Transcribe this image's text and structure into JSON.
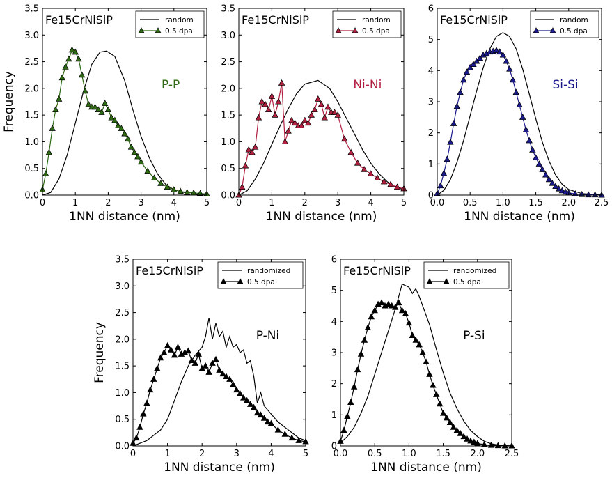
{
  "figure": {
    "ylabel": "Frequency",
    "xlabel": "1NN distance (nm)"
  },
  "chart_data": [
    {
      "id": "pp",
      "type": "line",
      "title": "Fe15CrNiSiP",
      "annotation": "P-P",
      "annotation_color": "#2d6a12",
      "xlabel": "1NN distance (nm)",
      "ylabel": "Frequency",
      "xlim": [
        0,
        5
      ],
      "ylim": [
        0,
        3.5
      ],
      "xticks": [
        "0",
        "1",
        "2",
        "3",
        "4",
        "5"
      ],
      "yticks": [
        "0.0",
        "0.5",
        "1.0",
        "1.5",
        "2.0",
        "2.5",
        "3.0",
        "3.5"
      ],
      "legend": "top-right",
      "series": [
        {
          "name": "random",
          "color": "#000000",
          "marker": "none",
          "x": [
            0,
            0.25,
            0.5,
            0.75,
            1,
            1.25,
            1.5,
            1.75,
            1.95,
            2.2,
            2.5,
            2.75,
            3,
            3.25,
            3.5,
            3.75,
            4,
            4.5,
            5
          ],
          "y": [
            0,
            0.05,
            0.3,
            0.75,
            1.35,
            1.95,
            2.45,
            2.68,
            2.7,
            2.6,
            2.15,
            1.6,
            1.1,
            0.7,
            0.4,
            0.2,
            0.1,
            0.02,
            0
          ]
        },
        {
          "name": "0.5 dpa",
          "color": "#2d6a12",
          "marker": "triangle",
          "x": [
            0,
            0.1,
            0.2,
            0.3,
            0.4,
            0.5,
            0.6,
            0.7,
            0.8,
            0.9,
            1.0,
            1.1,
            1.2,
            1.3,
            1.4,
            1.5,
            1.6,
            1.7,
            1.8,
            1.9,
            2.0,
            2.1,
            2.2,
            2.3,
            2.4,
            2.5,
            2.6,
            2.7,
            2.8,
            2.9,
            3.0,
            3.2,
            3.4,
            3.6,
            3.8,
            4.0,
            4.2,
            4.4,
            4.6,
            4.8,
            5.0
          ],
          "y": [
            0.1,
            0.4,
            0.8,
            1.25,
            1.6,
            1.8,
            2.2,
            2.4,
            2.55,
            2.72,
            2.68,
            2.55,
            2.25,
            1.95,
            1.7,
            1.65,
            1.65,
            1.6,
            1.55,
            1.72,
            1.6,
            1.45,
            1.4,
            1.3,
            1.25,
            1.15,
            1.05,
            0.9,
            0.8,
            0.72,
            0.62,
            0.45,
            0.32,
            0.22,
            0.15,
            0.1,
            0.07,
            0.05,
            0.04,
            0.03,
            0.02
          ]
        }
      ]
    },
    {
      "id": "nini",
      "type": "line",
      "title": "Fe15CrNiSiP",
      "annotation": "Ni-Ni",
      "annotation_color": "#b22040",
      "xlabel": "1NN distance (nm)",
      "ylabel": "",
      "xlim": [
        0,
        5
      ],
      "ylim": [
        0,
        3.5
      ],
      "xticks": [
        "0",
        "1",
        "2",
        "3",
        "4",
        "5"
      ],
      "yticks": [
        "0.0",
        "0.5",
        "1.0",
        "1.5",
        "2.0",
        "2.5",
        "3.0",
        "3.5"
      ],
      "legend": "top-right",
      "series": [
        {
          "name": "random",
          "color": "#000000",
          "marker": "none",
          "x": [
            0,
            0.25,
            0.5,
            0.75,
            1,
            1.25,
            1.5,
            1.75,
            2,
            2.4,
            2.75,
            3,
            3.25,
            3.5,
            3.75,
            4,
            4.25,
            4.5,
            4.75,
            5
          ],
          "y": [
            0,
            0.08,
            0.3,
            0.6,
            0.95,
            1.3,
            1.62,
            1.9,
            2.08,
            2.15,
            2.0,
            1.75,
            1.45,
            1.15,
            0.85,
            0.6,
            0.4,
            0.25,
            0.15,
            0.1
          ]
        },
        {
          "name": "0.5 dpa",
          "color": "#b22040",
          "marker": "triangle",
          "x": [
            0,
            0.1,
            0.2,
            0.3,
            0.4,
            0.5,
            0.6,
            0.7,
            0.8,
            0.9,
            1.0,
            1.1,
            1.2,
            1.3,
            1.4,
            1.5,
            1.6,
            1.7,
            1.8,
            1.9,
            2.0,
            2.1,
            2.2,
            2.3,
            2.4,
            2.5,
            2.6,
            2.7,
            2.8,
            2.9,
            3.0,
            3.2,
            3.4,
            3.6,
            3.8,
            4.0,
            4.2,
            4.4,
            4.6,
            4.8,
            5.0
          ],
          "y": [
            0.0,
            0.15,
            0.55,
            0.85,
            0.8,
            0.9,
            1.45,
            1.75,
            1.7,
            1.6,
            1.85,
            1.5,
            1.75,
            2.1,
            1.0,
            1.2,
            1.4,
            1.35,
            1.3,
            1.3,
            1.4,
            1.35,
            1.5,
            1.6,
            1.8,
            1.7,
            1.45,
            1.65,
            1.55,
            1.55,
            1.5,
            1.05,
            0.8,
            0.6,
            0.48,
            0.4,
            0.32,
            0.25,
            0.2,
            0.15,
            0.12
          ]
        }
      ]
    },
    {
      "id": "sisi",
      "type": "line",
      "title": "Fe15CrNiSiP",
      "annotation": "Si-Si",
      "annotation_color": "#1a1a8c",
      "xlabel": "1NN distance (nm)",
      "ylabel": "",
      "xlim": [
        0,
        2.5
      ],
      "ylim": [
        0,
        6
      ],
      "xticks": [
        "0.0",
        "0.5",
        "1.0",
        "1.5",
        "2.0",
        "2.5"
      ],
      "yticks": [
        "0",
        "1",
        "2",
        "3",
        "4",
        "5",
        "6"
      ],
      "legend": "top-right",
      "series": [
        {
          "name": "random",
          "color": "#000000",
          "marker": "none",
          "x": [
            0,
            0.1,
            0.2,
            0.3,
            0.4,
            0.5,
            0.6,
            0.7,
            0.8,
            0.9,
            1.0,
            1.1,
            1.2,
            1.3,
            1.4,
            1.5,
            1.6,
            1.7,
            1.8,
            1.9,
            2.0,
            2.2,
            2.5
          ],
          "y": [
            0,
            0.15,
            0.5,
            1.05,
            1.75,
            2.55,
            3.35,
            4.1,
            4.7,
            5.1,
            5.22,
            5.1,
            4.7,
            4.05,
            3.25,
            2.45,
            1.7,
            1.1,
            0.65,
            0.35,
            0.18,
            0.05,
            0
          ]
        },
        {
          "name": "0.5 dpa",
          "color": "#1a1a8c",
          "marker": "triangle",
          "x": [
            0,
            0.05,
            0.1,
            0.15,
            0.2,
            0.25,
            0.3,
            0.35,
            0.4,
            0.45,
            0.5,
            0.55,
            0.6,
            0.65,
            0.7,
            0.75,
            0.8,
            0.85,
            0.9,
            0.95,
            1.0,
            1.05,
            1.1,
            1.15,
            1.2,
            1.25,
            1.3,
            1.35,
            1.4,
            1.45,
            1.5,
            1.55,
            1.6,
            1.65,
            1.7,
            1.75,
            1.8,
            1.85,
            1.9,
            1.95,
            2.0,
            2.1,
            2.2,
            2.3,
            2.4,
            2.5
          ],
          "y": [
            0.05,
            0.3,
            0.7,
            1.15,
            1.7,
            2.3,
            2.85,
            3.3,
            3.7,
            3.95,
            4.1,
            4.2,
            4.3,
            4.4,
            4.5,
            4.55,
            4.6,
            4.62,
            4.65,
            4.6,
            4.5,
            4.3,
            4.05,
            3.7,
            3.3,
            2.9,
            2.5,
            2.1,
            1.75,
            1.45,
            1.2,
            1.0,
            0.82,
            0.65,
            0.5,
            0.38,
            0.28,
            0.2,
            0.14,
            0.1,
            0.07,
            0.04,
            0.02,
            0.01,
            0.01,
            0.0
          ]
        }
      ]
    },
    {
      "id": "pni",
      "type": "line",
      "title": "Fe15CrNiSiP",
      "annotation": "P-Ni",
      "annotation_color": "#000000",
      "xlabel": "1NN distance (nm)",
      "ylabel": "Frequency",
      "xlim": [
        0,
        5
      ],
      "ylim": [
        0,
        3.5
      ],
      "xticks": [
        "0",
        "1",
        "2",
        "3",
        "4",
        "5"
      ],
      "yticks": [
        "0.0",
        "0.5",
        "1.0",
        "1.5",
        "2.0",
        "2.5",
        "3.0",
        "3.5"
      ],
      "legend": "top-right",
      "series": [
        {
          "name": "randomized",
          "color": "#000000",
          "marker": "none",
          "x": [
            0,
            0.2,
            0.4,
            0.6,
            0.8,
            1.0,
            1.2,
            1.4,
            1.6,
            1.8,
            2.0,
            2.1,
            2.2,
            2.3,
            2.4,
            2.5,
            2.6,
            2.7,
            2.8,
            2.9,
            3.0,
            3.1,
            3.2,
            3.3,
            3.4,
            3.5,
            3.6,
            3.7,
            3.8,
            4.0,
            4.2,
            4.4,
            4.6,
            4.8,
            5.0
          ],
          "y": [
            0,
            0.05,
            0.1,
            0.2,
            0.3,
            0.5,
            0.85,
            1.2,
            1.5,
            1.7,
            1.85,
            2.05,
            2.4,
            2.0,
            2.3,
            2.05,
            2.15,
            1.85,
            2.05,
            1.85,
            1.9,
            1.75,
            1.8,
            1.55,
            1.6,
            1.3,
            0.8,
            1.0,
            0.75,
            0.6,
            0.45,
            0.35,
            0.25,
            0.15,
            0.1
          ]
        },
        {
          "name": "0.5 dpa",
          "color": "#000000",
          "marker": "triangle",
          "x": [
            0,
            0.1,
            0.2,
            0.3,
            0.4,
            0.5,
            0.6,
            0.7,
            0.8,
            0.9,
            1.0,
            1.1,
            1.2,
            1.3,
            1.4,
            1.5,
            1.6,
            1.7,
            1.8,
            1.9,
            2.0,
            2.1,
            2.2,
            2.3,
            2.4,
            2.5,
            2.6,
            2.7,
            2.8,
            2.9,
            3.0,
            3.1,
            3.2,
            3.3,
            3.4,
            3.5,
            3.6,
            3.7,
            3.8,
            3.9,
            4.0,
            4.2,
            4.4,
            4.6,
            4.8,
            5.0
          ],
          "y": [
            0.05,
            0.15,
            0.35,
            0.6,
            0.8,
            1.05,
            1.25,
            1.45,
            1.65,
            1.75,
            1.88,
            1.8,
            1.7,
            1.85,
            1.72,
            1.75,
            1.78,
            1.6,
            1.55,
            1.72,
            1.45,
            1.5,
            1.38,
            1.55,
            1.62,
            1.42,
            1.35,
            1.3,
            1.25,
            1.15,
            1.05,
            0.98,
            0.9,
            0.85,
            0.78,
            0.72,
            0.62,
            0.58,
            0.52,
            0.45,
            0.42,
            0.3,
            0.22,
            0.15,
            0.1,
            0.08
          ]
        }
      ]
    },
    {
      "id": "psi",
      "type": "line",
      "title": "Fe15CrNiSiP",
      "annotation": "P-Si",
      "annotation_color": "#000000",
      "xlabel": "1NN distance (nm)",
      "ylabel": "",
      "xlim": [
        0,
        2.5
      ],
      "ylim": [
        0,
        6
      ],
      "xticks": [
        "0.0",
        "0.5",
        "1.0",
        "1.5",
        "2.0",
        "2.5"
      ],
      "yticks": [
        "0",
        "1",
        "2",
        "3",
        "4",
        "5",
        "6"
      ],
      "legend": "top-right",
      "series": [
        {
          "name": "randomized",
          "color": "#000000",
          "marker": "none",
          "x": [
            0,
            0.1,
            0.2,
            0.3,
            0.4,
            0.5,
            0.6,
            0.7,
            0.8,
            0.9,
            1.0,
            1.05,
            1.1,
            1.15,
            1.2,
            1.3,
            1.4,
            1.5,
            1.6,
            1.7,
            1.8,
            1.9,
            2.0,
            2.1,
            2.2,
            2.3,
            2.5
          ],
          "y": [
            0.1,
            0.3,
            0.6,
            1.05,
            1.6,
            2.3,
            3.0,
            3.7,
            4.4,
            5.2,
            5.1,
            4.9,
            5.05,
            4.8,
            4.5,
            3.9,
            3.1,
            2.35,
            1.7,
            1.2,
            0.8,
            0.5,
            0.3,
            0.15,
            0.07,
            0.03,
            0
          ]
        },
        {
          "name": "0.5 dpa",
          "color": "#000000",
          "marker": "triangle",
          "x": [
            0,
            0.05,
            0.1,
            0.15,
            0.2,
            0.25,
            0.3,
            0.35,
            0.4,
            0.45,
            0.5,
            0.55,
            0.6,
            0.65,
            0.7,
            0.75,
            0.8,
            0.85,
            0.9,
            0.95,
            1.0,
            1.05,
            1.1,
            1.15,
            1.2,
            1.25,
            1.3,
            1.35,
            1.4,
            1.45,
            1.5,
            1.55,
            1.6,
            1.65,
            1.7,
            1.75,
            1.8,
            1.85,
            1.9,
            1.95,
            2.0,
            2.1,
            2.2,
            2.3,
            2.4,
            2.5
          ],
          "y": [
            0.15,
            0.5,
            0.95,
            1.4,
            1.9,
            2.45,
            2.95,
            3.4,
            3.8,
            4.15,
            4.35,
            4.55,
            4.6,
            4.5,
            4.55,
            4.5,
            4.45,
            4.6,
            4.35,
            4.25,
            3.95,
            3.55,
            3.4,
            3.25,
            3.0,
            2.7,
            2.3,
            1.95,
            1.65,
            1.35,
            1.05,
            0.9,
            0.75,
            0.6,
            0.5,
            0.4,
            0.3,
            0.22,
            0.16,
            0.12,
            0.08,
            0.04,
            0.02,
            0.01,
            0.0,
            0.0
          ]
        }
      ]
    }
  ]
}
